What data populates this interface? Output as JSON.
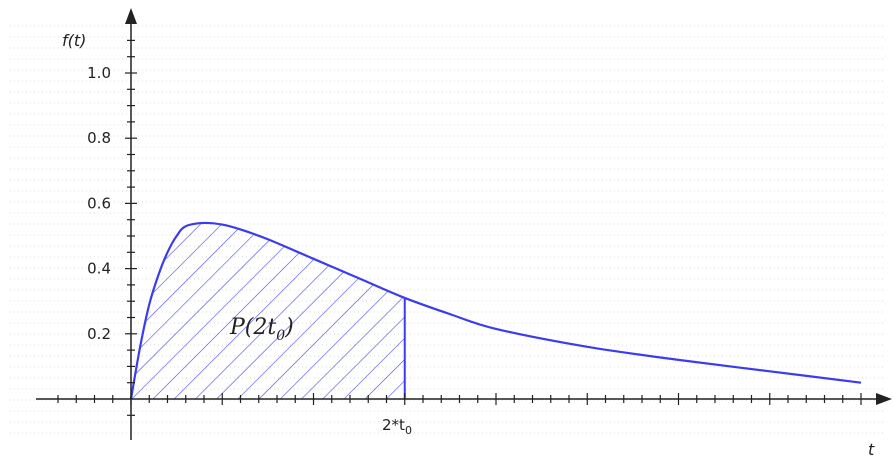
{
  "chart_data": {
    "type": "area",
    "ylabel": "f(t)",
    "xlabel": "t",
    "ylim": [
      0,
      1.1
    ],
    "xlim": [
      0,
      8
    ],
    "yticks": [
      0.2,
      0.4,
      0.6,
      0.8,
      1.0
    ],
    "ytick_labels": [
      "0.2",
      "0.4",
      "0.6",
      "0.8",
      "1.0"
    ],
    "grid": true,
    "curve": {
      "x": [
        0,
        0.1,
        0.2,
        0.3,
        0.4,
        0.5,
        0.6,
        0.8,
        1.0,
        1.2,
        1.5,
        2.0,
        2.5,
        3.0,
        3.5,
        4.0,
        5.0,
        6.0,
        7.0,
        8.0
      ],
      "y": [
        0,
        0.16,
        0.29,
        0.38,
        0.45,
        0.5,
        0.53,
        0.54,
        0.535,
        0.52,
        0.49,
        0.43,
        0.37,
        0.31,
        0.26,
        0.215,
        0.16,
        0.12,
        0.085,
        0.05
      ]
    },
    "shaded_region": {
      "from": 0,
      "to": 3.0
    },
    "annotations": {
      "area_label": "P(2t",
      "area_label_sub": "0",
      "area_label_close": ")",
      "x_marker": "2*t",
      "x_marker_sub": "0"
    },
    "colors": {
      "curve": "#3b3bf0",
      "hatch": "#4a4ae6",
      "axis": "#222222",
      "grid": "#d8d8d8"
    }
  }
}
